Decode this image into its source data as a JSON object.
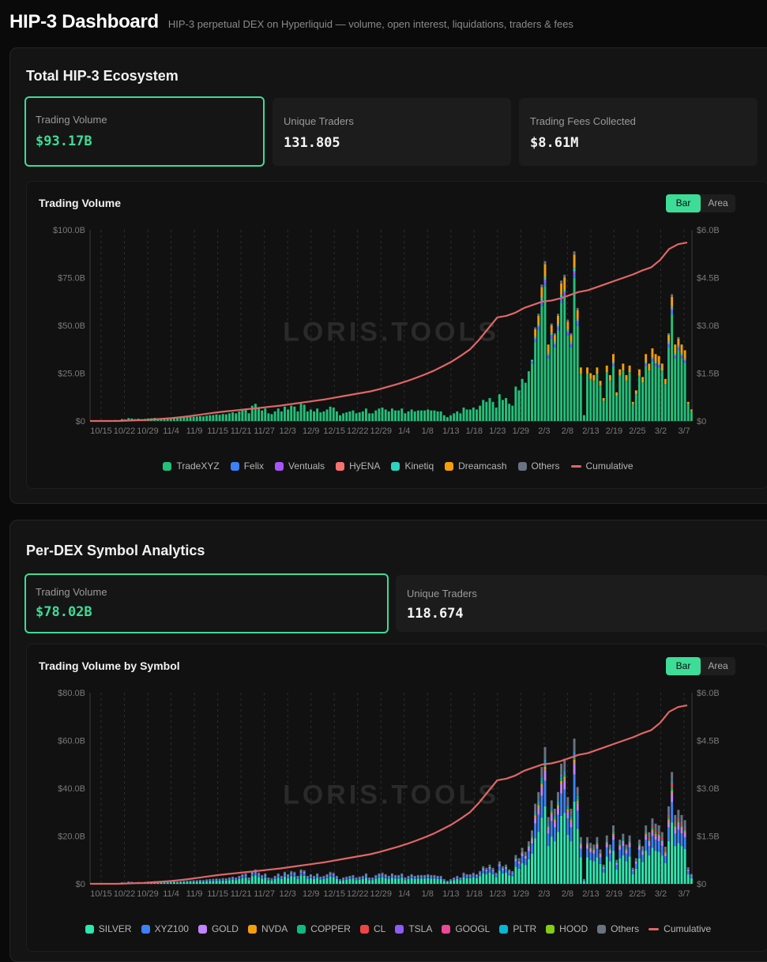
{
  "app": {
    "title": "HIP-3 Dashboard",
    "subtitle": "HIP-3 perpetual DEX on Hyperliquid — volume, open interest, liquidations, traders & fees"
  },
  "watermark": "LORIS.TOOLS",
  "toggle": {
    "bar": "Bar",
    "area": "Area"
  },
  "section1": {
    "title": "Total HIP-3 Ecosystem",
    "stats": [
      {
        "label": "Trading Volume",
        "value": "$93.17B"
      },
      {
        "label": "Unique Traders",
        "value": "131.805"
      },
      {
        "label": "Trading Fees Collected",
        "value": "$8.61M"
      }
    ],
    "chart_title": "Trading Volume"
  },
  "section2": {
    "title": "Per-DEX Symbol Analytics",
    "stats": [
      {
        "label": "Trading Volume",
        "value": "$78.02B"
      },
      {
        "label": "Unique Traders",
        "value": "118.674"
      }
    ],
    "chart_title": "Trading Volume by Symbol"
  },
  "chart_data": [
    {
      "type": "bar",
      "title": "Trading Volume",
      "stacked": true,
      "x_labels": [
        "10/15",
        "10/22",
        "10/29",
        "11/4",
        "11/9",
        "11/15",
        "11/21",
        "11/27",
        "12/3",
        "12/9",
        "12/15",
        "12/22",
        "12/29",
        "1/4",
        "1/8",
        "1/13",
        "1/18",
        "1/23",
        "1/29",
        "2/3",
        "2/8",
        "2/13",
        "2/19",
        "2/25",
        "3/2",
        "3/7"
      ],
      "y_left": {
        "ticks": [
          "$0",
          "$25.0B",
          "$50.0B",
          "$75.0B",
          "$100.0B"
        ],
        "max": 100
      },
      "y_right": {
        "ticks": [
          "$0",
          "$1.5B",
          "$3.0B",
          "$4.5B",
          "$6.0B"
        ],
        "max": 6
      },
      "totals": [
        0,
        0,
        0,
        0,
        0,
        0,
        0.3,
        0.5,
        0.4,
        1,
        0.8,
        1.5,
        1.3,
        1,
        1.2,
        1,
        1.1,
        1.3,
        1.4,
        1.6,
        1.2,
        1.5,
        1.4,
        1.3,
        1.6,
        1.7,
        1.5,
        1.8,
        1.9,
        2,
        2.1,
        2.2,
        2.3,
        2.5,
        2.4,
        2.8,
        3,
        3.1,
        3.4,
        3.2,
        3.6,
        3.5,
        4,
        4.5,
        4,
        5,
        6,
        6.5,
        4,
        8,
        9,
        7,
        5.5,
        6.5,
        4,
        3.6,
        5,
        6.5,
        5,
        7.5,
        6,
        8,
        7.5,
        5,
        9,
        8.5,
        5,
        6,
        5,
        6.5,
        4.5,
        5,
        6,
        7.5,
        7,
        5,
        3,
        4,
        4.5,
        5,
        5.5,
        4,
        4.5,
        5,
        6.5,
        4,
        4,
        5.5,
        6.5,
        7,
        6,
        5,
        6.5,
        5.5,
        5.5,
        6.5,
        4,
        5,
        6,
        5,
        5.5,
        5.5,
        5.5,
        6,
        5.5,
        5.5,
        5,
        5,
        3,
        2,
        3,
        4,
        5,
        4,
        7,
        6,
        6,
        7,
        6,
        8,
        11,
        10,
        12,
        10,
        7,
        14,
        11,
        12,
        9,
        8,
        18,
        16,
        22,
        20,
        26,
        32,
        48,
        55,
        70,
        82,
        40,
        50,
        45,
        55,
        72,
        75,
        52,
        45,
        87,
        58,
        28,
        3,
        28,
        25,
        24,
        28,
        21,
        12,
        29,
        24,
        35,
        15,
        27,
        30,
        24,
        29,
        10,
        16,
        27,
        23,
        35,
        30,
        38,
        35,
        34,
        30,
        22,
        45,
        65,
        40,
        43,
        40,
        37,
        10,
        6
      ],
      "cumulative": [
        0,
        0,
        0,
        0,
        0.01,
        0.02,
        0.03,
        0.05,
        0.07,
        0.09,
        0.12,
        0.15,
        0.19,
        0.23,
        0.27,
        0.3,
        0.33,
        0.36,
        0.39,
        0.42,
        0.45,
        0.48,
        0.52,
        0.56,
        0.6,
        0.64,
        0.68,
        0.73,
        0.78,
        0.83,
        0.88,
        0.93,
        1,
        1.08,
        1.16,
        1.25,
        1.35,
        1.46,
        1.58,
        1.72,
        1.87,
        2.05,
        2.25,
        2.55,
        2.9,
        3.25,
        3.3,
        3.4,
        3.55,
        3.65,
        3.75,
        3.78,
        3.85,
        3.95,
        4.05,
        4.1,
        4.2,
        4.3,
        4.4,
        4.5,
        4.6,
        4.72,
        4.82,
        5.05,
        5.4,
        5.55,
        5.6
      ],
      "series": [
        "TradeXYZ",
        "Felix",
        "Ventuals",
        "HyENA",
        "Kinetiq",
        "Dreamcash",
        "Others",
        "Cumulative"
      ],
      "colors": [
        "#22c07a",
        "#3b82f6",
        "#a855f7",
        "#f87171",
        "#2dd4bf",
        "#f59e0b",
        "#6b7280",
        "#e06666"
      ]
    },
    {
      "type": "bar",
      "title": "Trading Volume by Symbol",
      "stacked": true,
      "x_labels": [
        "10/15",
        "10/22",
        "10/29",
        "11/4",
        "11/9",
        "11/15",
        "11/21",
        "11/27",
        "12/3",
        "12/9",
        "12/15",
        "12/22",
        "12/29",
        "1/4",
        "1/8",
        "1/13",
        "1/18",
        "1/23",
        "1/29",
        "2/3",
        "2/8",
        "2/13",
        "2/19",
        "2/25",
        "3/2",
        "3/7"
      ],
      "y_left": {
        "ticks": [
          "$0",
          "$20.0B",
          "$40.0B",
          "$60.0B",
          "$80.0B"
        ],
        "max": 80
      },
      "y_right": {
        "ticks": [
          "$0",
          "$1.5B",
          "$3.0B",
          "$4.5B",
          "$6.0B"
        ],
        "max": 6
      },
      "series": [
        "SILVER",
        "XYZ100",
        "GOLD",
        "NVDA",
        "COPPER",
        "CL",
        "TSLA",
        "GOOGL",
        "PLTR",
        "HOOD",
        "Others",
        "Cumulative"
      ],
      "colors": [
        "#2ee6b0",
        "#3b82f6",
        "#c084fc",
        "#f59e0b",
        "#10b981",
        "#ef4444",
        "#8b5cf6",
        "#ec4899",
        "#06b6d4",
        "#84cc16",
        "#6b7280",
        "#e06666"
      ]
    }
  ]
}
